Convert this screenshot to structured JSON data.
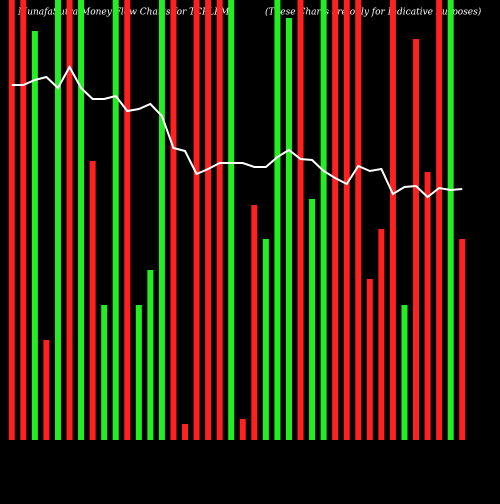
{
  "chart_data": {
    "type": "bar",
    "title": "MunafaSutra Money Flow Charts for TCPLPM",
    "subtitle": "(These Charts are only for Indicative Purposes)",
    "background": "#000000",
    "ylim": [
      0,
      440
    ],
    "series": [
      {
        "colors": [
          "#ff2020",
          "#ff2020",
          "#22ee22",
          "#ff2020",
          "#22ee22",
          "#ff2020",
          "#22ee22",
          "#ff2020",
          "#22ee22",
          "#22ee22",
          "#ff2020",
          "#22ee22",
          "#22ee22",
          "#22ee22",
          "#ff2020",
          "#ff2020",
          "#ff2020",
          "#ff2020",
          "#ff2020",
          "#22ee22",
          "#ff2020",
          "#ff2020",
          "#22ee22",
          "#22ee22",
          "#22ee22",
          "#ff2020",
          "#22ee22",
          "#22ee22",
          "#ff2020",
          "#ff2020",
          "#ff2020",
          "#ff2020",
          "#ff2020",
          "#ff2020",
          "#22ee22",
          "#ff2020",
          "#ff2020",
          "#ff2020",
          "#22ee22",
          "#ff2020"
        ],
        "values": [
          440,
          440,
          409,
          100,
          440,
          440,
          440,
          279,
          135,
          440,
          440,
          135,
          170,
          440,
          440,
          16,
          440,
          440,
          440,
          440,
          21,
          235,
          201,
          440,
          422,
          440,
          241,
          440,
          440,
          440,
          440,
          161,
          211,
          440,
          135,
          401,
          268,
          440,
          440,
          201
        ]
      },
      {
        "color": "#ffffff",
        "values": [
          355,
          355,
          360,
          363,
          352,
          373,
          352,
          341,
          341,
          344,
          329,
          331,
          336,
          324,
          292,
          289,
          266,
          271,
          277,
          277,
          277,
          273,
          273,
          283,
          290,
          281,
          280,
          269,
          262,
          256,
          274,
          269,
          271,
          246,
          253,
          254,
          243,
          252,
          250,
          251
        ]
      }
    ]
  }
}
